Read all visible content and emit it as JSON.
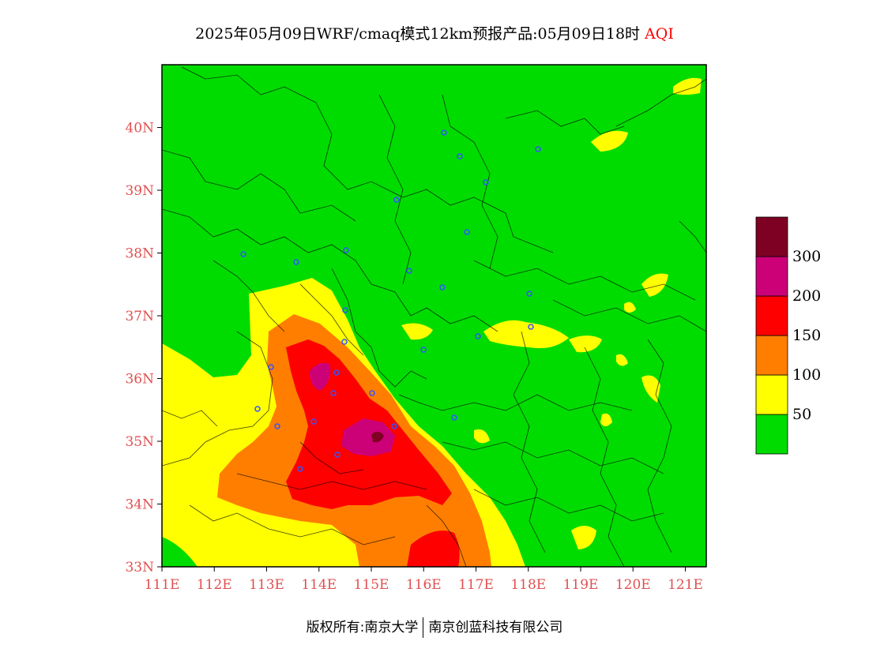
{
  "title": {
    "main": "2025年05月09日WRF/cmaq模式12km预报产品:05月09日18时",
    "product": "AQI"
  },
  "axes": {
    "lat_ticks": [
      "40N",
      "39N",
      "38N",
      "37N",
      "36N",
      "35N",
      "34N",
      "33N"
    ],
    "lon_ticks": [
      "111E",
      "112E",
      "113E",
      "114E",
      "115E",
      "116E",
      "117E",
      "118E",
      "119E",
      "120E",
      "121E"
    ],
    "lon_range": [
      111,
      121.4
    ],
    "lat_range": [
      33,
      41
    ]
  },
  "legend": {
    "levels": [
      {
        "label": "",
        "color": "#00dc00"
      },
      {
        "label": "50",
        "color": "#ffff00"
      },
      {
        "label": "100",
        "color": "#ff7e00"
      },
      {
        "label": "150",
        "color": "#ff0000"
      },
      {
        "label": "200",
        "color": "#cc0077"
      },
      {
        "label": "300",
        "color": "#7e0023"
      }
    ]
  },
  "credit": {
    "left": "版权所有:南京大学",
    "right": "南京创蓝科技有限公司"
  },
  "colors": {
    "good": "#00dc00",
    "moderate": "#ffff00",
    "usg": "#ff7e00",
    "unhealthy": "#ff0000",
    "very_unhealthy": "#cc0077",
    "hazardous": "#7e0023",
    "city_marker": "#3355ff",
    "tick_text": "#e05050"
  }
}
